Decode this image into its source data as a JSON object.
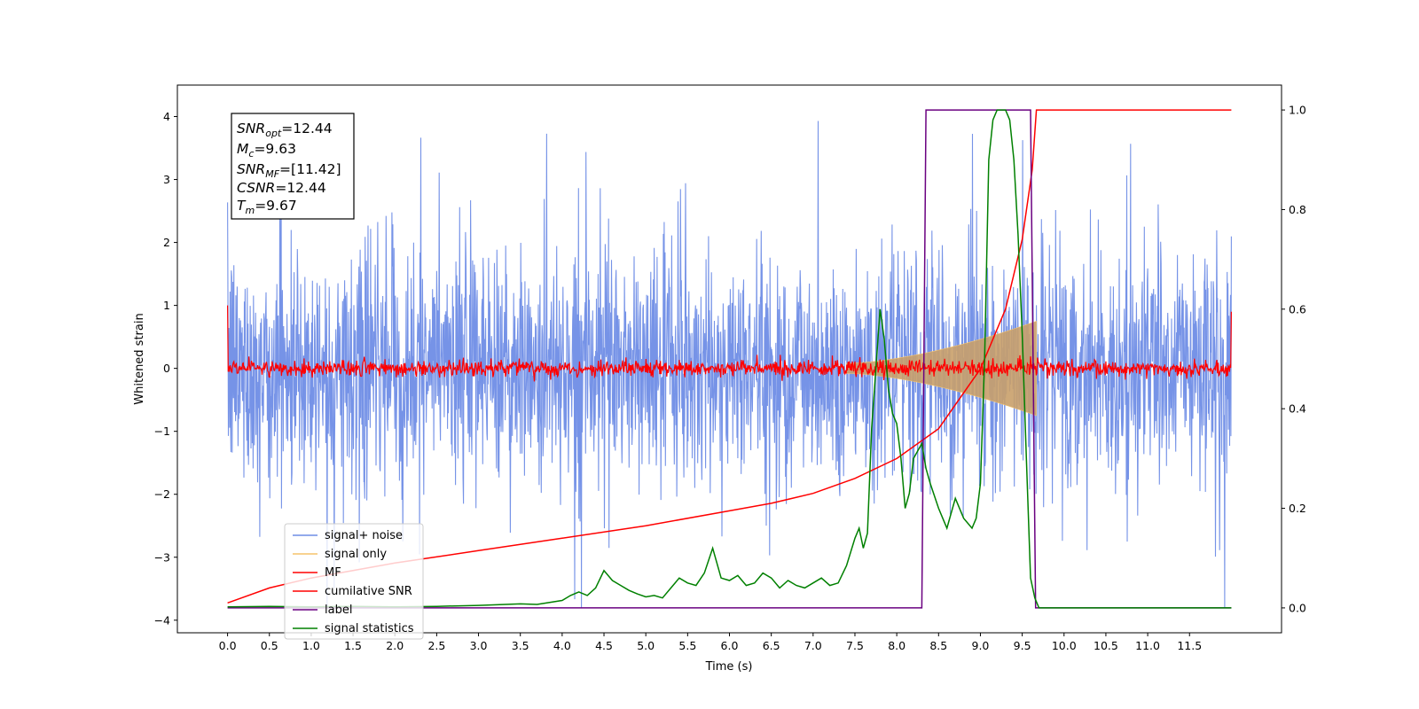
{
  "chart_data": {
    "type": "line",
    "title": "",
    "xlabel": "Time (s)",
    "ylabel": "Whitened strain",
    "xlim": [
      -0.6,
      12.6
    ],
    "ylim": [
      -4.2,
      4.5
    ],
    "y2lim": [
      -0.05,
      1.05
    ],
    "x_ticks": [
      "0.0",
      "0.5",
      "1.0",
      "1.5",
      "2.0",
      "2.5",
      "3.0",
      "3.5",
      "4.0",
      "4.5",
      "5.0",
      "5.5",
      "6.0",
      "6.5",
      "7.0",
      "7.5",
      "8.0",
      "8.5",
      "9.0",
      "9.5",
      "10.0",
      "10.5",
      "11.0",
      "11.5"
    ],
    "y_ticks": [
      "4",
      "3",
      "2",
      "1",
      "0",
      "−1",
      "−2",
      "−3",
      "−4"
    ],
    "y2_ticks": [
      "1.0",
      "0.8",
      "0.6",
      "0.4",
      "0.2",
      "0.0"
    ],
    "grid": false,
    "legend_position": "lower-left",
    "info_box": {
      "snr_opt": {
        "sym": "SNR",
        "sub": "opt",
        "value": "=12.44"
      },
      "mc": {
        "sym": "M",
        "sub": "c",
        "value": "=9.63"
      },
      "snr_mf": {
        "sym": "SNR",
        "sub": "MF",
        "value": "=[11.42]"
      },
      "csnr": {
        "sym": "CSNR",
        "sub": "",
        "value": "=12.44"
      },
      "tm": {
        "sym": "T",
        "sub": "m",
        "value": "=9.67"
      }
    },
    "signal_noise": {
      "x_start": 0.0,
      "x_end": 12.0,
      "envelope_y": [
        -2.3,
        2.3
      ],
      "spike_max": 4.15,
      "spike_min": -3.8
    },
    "signal_only": {
      "x_merger": 9.67,
      "amp_end": 0.75
    },
    "mf": {
      "x_start": 0.0,
      "x_end": 12.0,
      "amplitude": 0.12,
      "edge_value_start": 1.0,
      "edge_value_end": 0.9
    },
    "series": [
      {
        "name": "signal+ noise",
        "color": "#6f8de6"
      },
      {
        "name": "signal only",
        "color": "#f5c36b"
      },
      {
        "name": "MF",
        "color": "#ff0000"
      },
      {
        "name": "cumilative SNR",
        "color": "#ff0000",
        "x": [
          0.0,
          0.5,
          1.0,
          2.0,
          3.0,
          4.0,
          5.0,
          6.0,
          6.5,
          7.0,
          7.5,
          8.0,
          8.5,
          9.0,
          9.3,
          9.5,
          9.62,
          9.67,
          12.0
        ],
        "y": [
          0.01,
          0.04,
          0.06,
          0.09,
          0.115,
          0.14,
          0.165,
          0.195,
          0.21,
          0.23,
          0.26,
          0.3,
          0.36,
          0.48,
          0.6,
          0.74,
          0.88,
          1.0,
          1.0
        ]
      },
      {
        "name": "label",
        "color": "#6a0080",
        "x": [
          0.0,
          8.3,
          8.35,
          9.6,
          9.66,
          12.0
        ],
        "y": [
          0.0,
          0.0,
          1.0,
          1.0,
          0.0,
          0.0
        ]
      },
      {
        "name": "signal statistics",
        "color": "#008000",
        "x": [
          0.0,
          0.5,
          1.0,
          1.5,
          2.0,
          2.5,
          3.0,
          3.5,
          3.7,
          4.0,
          4.1,
          4.2,
          4.3,
          4.4,
          4.5,
          4.6,
          4.7,
          4.8,
          4.9,
          5.0,
          5.1,
          5.2,
          5.3,
          5.4,
          5.5,
          5.6,
          5.7,
          5.8,
          5.9,
          6.0,
          6.1,
          6.2,
          6.3,
          6.4,
          6.5,
          6.6,
          6.7,
          6.8,
          6.9,
          7.0,
          7.1,
          7.2,
          7.3,
          7.4,
          7.5,
          7.55,
          7.6,
          7.65,
          7.7,
          7.75,
          7.8,
          7.85,
          7.9,
          7.95,
          8.0,
          8.05,
          8.1,
          8.15,
          8.2,
          8.3,
          8.35,
          8.4,
          8.5,
          8.55,
          8.6,
          8.7,
          8.8,
          8.9,
          8.95,
          9.0,
          9.05,
          9.1,
          9.15,
          9.2,
          9.25,
          9.3,
          9.35,
          9.4,
          9.45,
          9.5,
          9.55,
          9.6,
          9.65,
          9.7,
          12.0
        ],
        "y": [
          0.002,
          0.003,
          0.002,
          0.003,
          0.002,
          0.003,
          0.005,
          0.008,
          0.007,
          0.015,
          0.025,
          0.032,
          0.025,
          0.04,
          0.075,
          0.055,
          0.045,
          0.035,
          0.028,
          0.022,
          0.025,
          0.02,
          0.04,
          0.06,
          0.05,
          0.045,
          0.07,
          0.12,
          0.06,
          0.055,
          0.065,
          0.045,
          0.05,
          0.07,
          0.06,
          0.04,
          0.055,
          0.045,
          0.04,
          0.05,
          0.06,
          0.045,
          0.05,
          0.085,
          0.14,
          0.16,
          0.12,
          0.15,
          0.36,
          0.48,
          0.6,
          0.54,
          0.44,
          0.39,
          0.37,
          0.3,
          0.2,
          0.23,
          0.3,
          0.33,
          0.28,
          0.25,
          0.2,
          0.18,
          0.16,
          0.22,
          0.18,
          0.16,
          0.18,
          0.25,
          0.5,
          0.9,
          0.98,
          1.0,
          1.0,
          1.0,
          0.98,
          0.9,
          0.75,
          0.55,
          0.3,
          0.06,
          0.02,
          0.0,
          0.0
        ]
      }
    ]
  }
}
